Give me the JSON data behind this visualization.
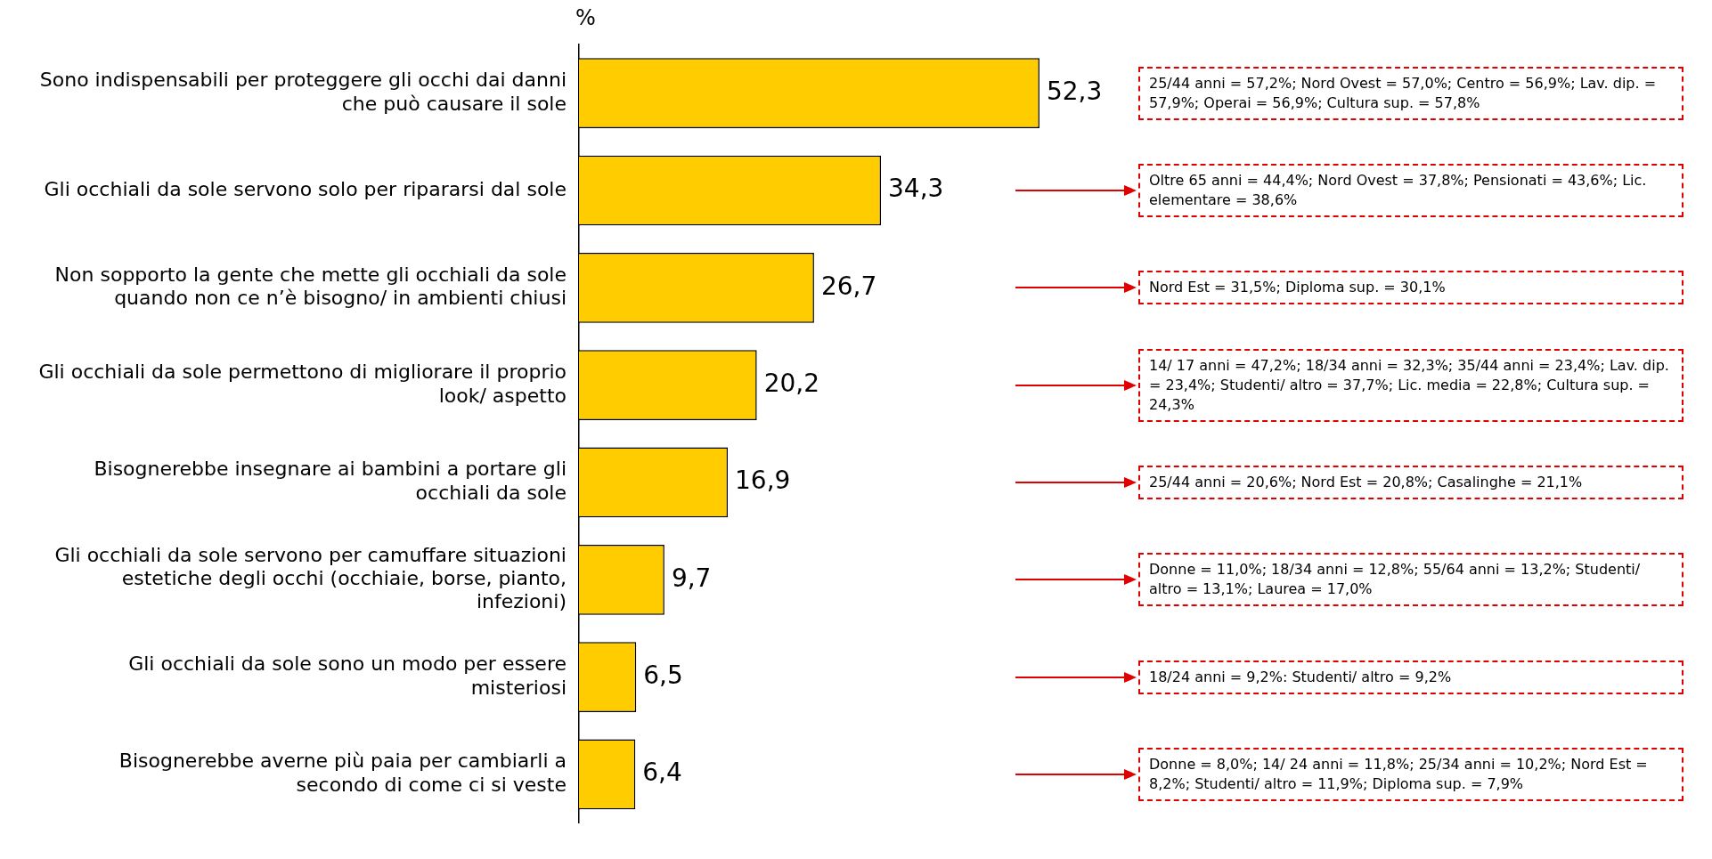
{
  "chart_data": {
    "type": "bar",
    "orientation": "horizontal",
    "xlabel": "%",
    "categories": [
      "Sono indispensabili per proteggere gli occhi dai danni che può causare il sole",
      "Gli occhiali da sole servono solo per ripararsi dal sole",
      "Non sopporto la gente che mette gli occhiali da sole quando non ce n’è bisogno/ in ambienti chiusi",
      "Gli occhiali da sole permettono di migliorare il proprio look/ aspetto",
      "Bisognerebbe insegnare ai bambini a portare gli occhiali da sole",
      "Gli occhiali da sole servono per camuffare situazioni estetiche degli occhi (occhiaie, borse, pianto, infezioni)",
      "Gli occhiali da sole sono un modo per essere misteriosi",
      "Bisognerebbe averne più paia per cambiarli a secondo di come ci si veste"
    ],
    "values": [
      52.3,
      34.3,
      26.7,
      20.2,
      16.9,
      9.7,
      6.5,
      6.4
    ],
    "value_labels": [
      "52,3",
      "34,3",
      "26,7",
      "20,2",
      "16,9",
      "9,7",
      "6,5",
      "6,4"
    ],
    "color": "#ffcc00",
    "annotations": [
      "25/44 anni = 57,2%; Nord Ovest = 57,0%; Centro = 56,9%; Lav. dip. = 57,9%; Operai = 56,9%; Cultura sup. = 57,8%",
      "Oltre 65 anni = 44,4%; Nord Ovest = 37,8%; Pensionati = 43,6%; Lic. elementare = 38,6%",
      "Nord Est = 31,5%; Diploma sup. = 30,1%",
      "14/ 17 anni = 47,2%; 18/34 anni = 32,3%; 35/44 anni = 23,4%; Lav. dip. = 23,4%; Studenti/ altro = 37,7%; Lic. media = 22,8%; Cultura sup. = 24,3%",
      "25/44 anni = 20,6%; Nord Est = 20,8%; Casalinghe = 21,1%",
      "Donne = 11,0%; 18/34 anni = 12,8%; 55/64 anni = 13,2%; Studenti/ altro = 13,1%; Laurea = 17,0%",
      "18/24 anni = 9,2%: Studenti/ altro = 9,2%",
      "Donne = 8,0%; 14/ 24 anni = 11,8%; 25/34 anni = 10,2%; Nord Est = 8,2%; Studenti/ altro = 11,9%; Diploma sup. = 7,9%"
    ]
  }
}
